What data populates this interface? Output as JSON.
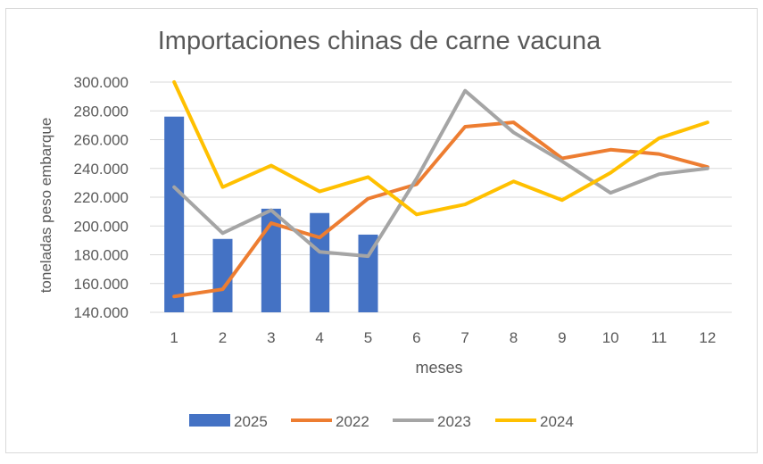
{
  "chart_data": {
    "type": "bar+line",
    "title": "Importaciones chinas de carne vacuna",
    "xlabel": "meses",
    "ylabel": "toneladas peso embarque",
    "categories": [
      "1",
      "2",
      "3",
      "4",
      "5",
      "6",
      "7",
      "8",
      "9",
      "10",
      "11",
      "12"
    ],
    "ylim": [
      140000,
      300000
    ],
    "yticks": [
      "140.000",
      "160.000",
      "180.000",
      "200.000",
      "220.000",
      "240.000",
      "260.000",
      "280.000",
      "300.000"
    ],
    "ytick_values": [
      140000,
      160000,
      180000,
      200000,
      220000,
      240000,
      260000,
      280000,
      300000
    ],
    "grid": true,
    "legend_position": "bottom",
    "series": [
      {
        "name": "2025",
        "type": "bar",
        "color": "#4472C4",
        "values": [
          276000,
          191000,
          212000,
          209000,
          194000,
          null,
          null,
          null,
          null,
          null,
          null,
          null
        ]
      },
      {
        "name": "2022",
        "type": "line",
        "color": "#ED7D31",
        "values": [
          151000,
          156000,
          202000,
          192000,
          219000,
          229000,
          269000,
          272000,
          247000,
          253000,
          250000,
          241000
        ]
      },
      {
        "name": "2023",
        "type": "line",
        "color": "#A5A5A5",
        "values": [
          227000,
          195000,
          211000,
          182000,
          179000,
          233000,
          294000,
          265000,
          245000,
          223000,
          236000,
          240000
        ]
      },
      {
        "name": "2024",
        "type": "line",
        "color": "#FFC000",
        "values": [
          300000,
          227000,
          242000,
          224000,
          234000,
          208000,
          215000,
          231000,
          218000,
          237000,
          261000,
          272000
        ]
      }
    ]
  }
}
